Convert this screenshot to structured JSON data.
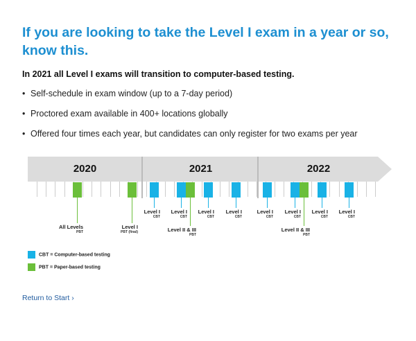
{
  "heading": "If you are looking to take the Level I exam in a year or so, know this.",
  "subheading": "In 2021 all Level I exams will transition to computer-based testing.",
  "bullets": [
    "Self-schedule in exam window (up to a 7-day period)",
    "Proctored exam available in 400+ locations globally",
    "Offered four times each year, but candidates can only register for two exams per year"
  ],
  "bullet_glyph": "•",
  "timeline": {
    "years": [
      "2020",
      "2021",
      "2022"
    ],
    "events": [
      {
        "year": "2020",
        "type": "PBT",
        "label": "All Levels",
        "sub": "PBT"
      },
      {
        "year": "2020",
        "type": "PBT",
        "label": "Level I",
        "sub": "PBT (final)"
      },
      {
        "year": "2021",
        "type": "CBT",
        "label": "Level I",
        "sub": "CBT"
      },
      {
        "year": "2021",
        "type": "CBT",
        "label": "Level I",
        "sub": "CBT"
      },
      {
        "year": "2021",
        "type": "PBT",
        "label": "Level II & III",
        "sub": "PBT"
      },
      {
        "year": "2021",
        "type": "CBT",
        "label": "Level I",
        "sub": "CBT"
      },
      {
        "year": "2021",
        "type": "CBT",
        "label": "Level I",
        "sub": "CBT"
      },
      {
        "year": "2022",
        "type": "CBT",
        "label": "Level I",
        "sub": "CBT"
      },
      {
        "year": "2022",
        "type": "CBT",
        "label": "Level I",
        "sub": "CBT"
      },
      {
        "year": "2022",
        "type": "PBT",
        "label": "Level II & III",
        "sub": "PBT"
      },
      {
        "year": "2022",
        "type": "CBT",
        "label": "Level I",
        "sub": "CBT"
      },
      {
        "year": "2022",
        "type": "CBT",
        "label": "Level I",
        "sub": "CBT"
      }
    ]
  },
  "colors": {
    "CBT": "#19b2e6",
    "PBT": "#6bbf3a",
    "heading": "#1d8fd1"
  },
  "legend": [
    {
      "type": "CBT",
      "label": "CBT = Computer-based testing"
    },
    {
      "type": "PBT",
      "label": "PBT = Paper-based testing"
    }
  ],
  "return_link": "Return to Start ›"
}
